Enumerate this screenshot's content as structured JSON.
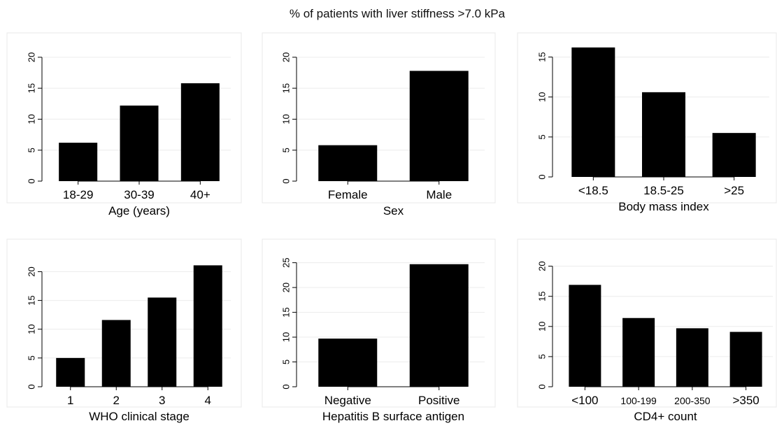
{
  "title": "% of patients with liver stiffness >7.0 kPa",
  "chart_data": [
    {
      "type": "bar",
      "xlabel": "Age (years)",
      "categories": [
        "18-29",
        "30-39",
        "40+"
      ],
      "values": [
        6.2,
        12.2,
        15.8
      ],
      "ylim": [
        0,
        21
      ],
      "yticks": [
        0,
        5,
        10,
        15,
        20
      ],
      "grid": true
    },
    {
      "type": "bar",
      "xlabel": "Sex",
      "categories": [
        "Female",
        "Male"
      ],
      "values": [
        5.8,
        17.8
      ],
      "ylim": [
        0,
        21
      ],
      "yticks": [
        0,
        5,
        10,
        15,
        20
      ],
      "grid": true
    },
    {
      "type": "bar",
      "xlabel": "Body mass index",
      "categories": [
        "<18.5",
        "18.5-25",
        ">25"
      ],
      "values": [
        16.2,
        10.6,
        5.5
      ],
      "ylim": [
        0,
        16.8
      ],
      "yticks": [
        0,
        5,
        10,
        15
      ],
      "grid": true
    },
    {
      "type": "bar",
      "xlabel": "WHO clinical stage",
      "categories": [
        "1",
        "2",
        "3",
        "4"
      ],
      "values": [
        5.0,
        11.6,
        15.5,
        21.1
      ],
      "ylim": [
        0,
        22
      ],
      "yticks": [
        0,
        5,
        10,
        15,
        20
      ],
      "grid": true
    },
    {
      "type": "bar",
      "xlabel": "Hepatitis B surface antigen",
      "categories": [
        "Negative",
        "Positive"
      ],
      "values": [
        9.7,
        24.7
      ],
      "ylim": [
        0,
        26.5
      ],
      "yticks": [
        0,
        5,
        10,
        15,
        20,
        25
      ],
      "grid": true
    },
    {
      "type": "bar",
      "xlabel": "CD4+ count",
      "categories": [
        "<100",
        "100-199",
        "200-350",
        ">350"
      ],
      "values": [
        16.9,
        11.4,
        9.7,
        9.1
      ],
      "ylim": [
        0,
        21
      ],
      "yticks": [
        0,
        5,
        10,
        15,
        20
      ],
      "grid": true
    }
  ]
}
